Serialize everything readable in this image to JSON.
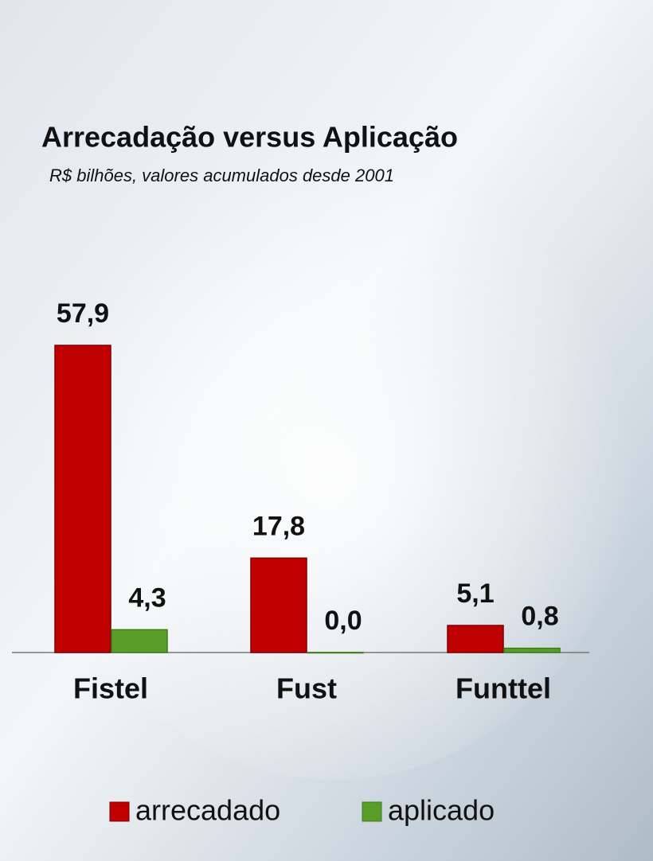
{
  "chart_data": {
    "type": "bar",
    "title": "Arrecadação versus Aplicação",
    "subtitle": "R$ bilhões, valores acumulados desde 2001",
    "categories": [
      "Fistel",
      "Fust",
      "Funttel"
    ],
    "series": [
      {
        "name": "arrecadado",
        "color": "#c00000",
        "values": [
          57.9,
          17.8,
          5.1
        ],
        "value_labels": [
          "57,9",
          "17,8",
          "5,1"
        ]
      },
      {
        "name": "aplicado",
        "color": "#5a9e2a",
        "values": [
          4.3,
          0.0,
          0.8
        ],
        "value_labels": [
          "4,3",
          "0,0",
          "0,8"
        ]
      }
    ],
    "ylim": [
      0,
      60
    ]
  }
}
